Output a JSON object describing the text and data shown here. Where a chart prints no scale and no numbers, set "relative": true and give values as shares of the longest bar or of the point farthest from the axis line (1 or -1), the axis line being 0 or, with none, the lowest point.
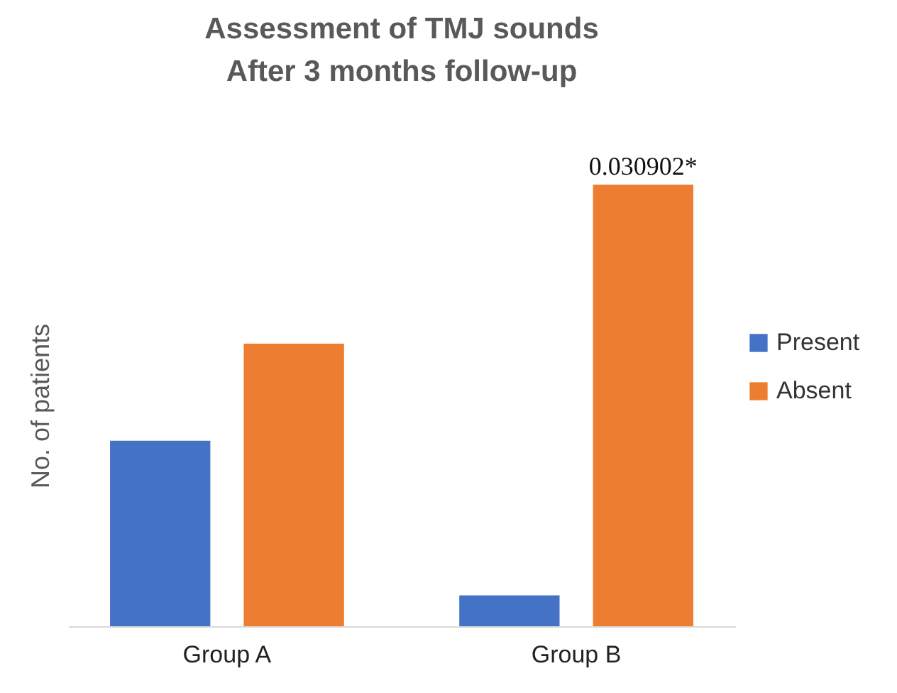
{
  "chart_data": {
    "type": "bar",
    "title": "Assessment  of TMJ sounds\nAfter 3 months follow-up",
    "ylabel": "No. of patients",
    "relative": true,
    "categories": [
      "Group A",
      "Group B"
    ],
    "series": [
      {
        "name": "Present",
        "color": "#4472c4",
        "values": [
          0.42,
          0.07
        ]
      },
      {
        "name": "Absent",
        "color": "#ed7d31",
        "values": [
          0.64,
          1
        ]
      }
    ],
    "annotations": [
      "0.030902*"
    ],
    "legend": "right",
    "grid": false
  }
}
